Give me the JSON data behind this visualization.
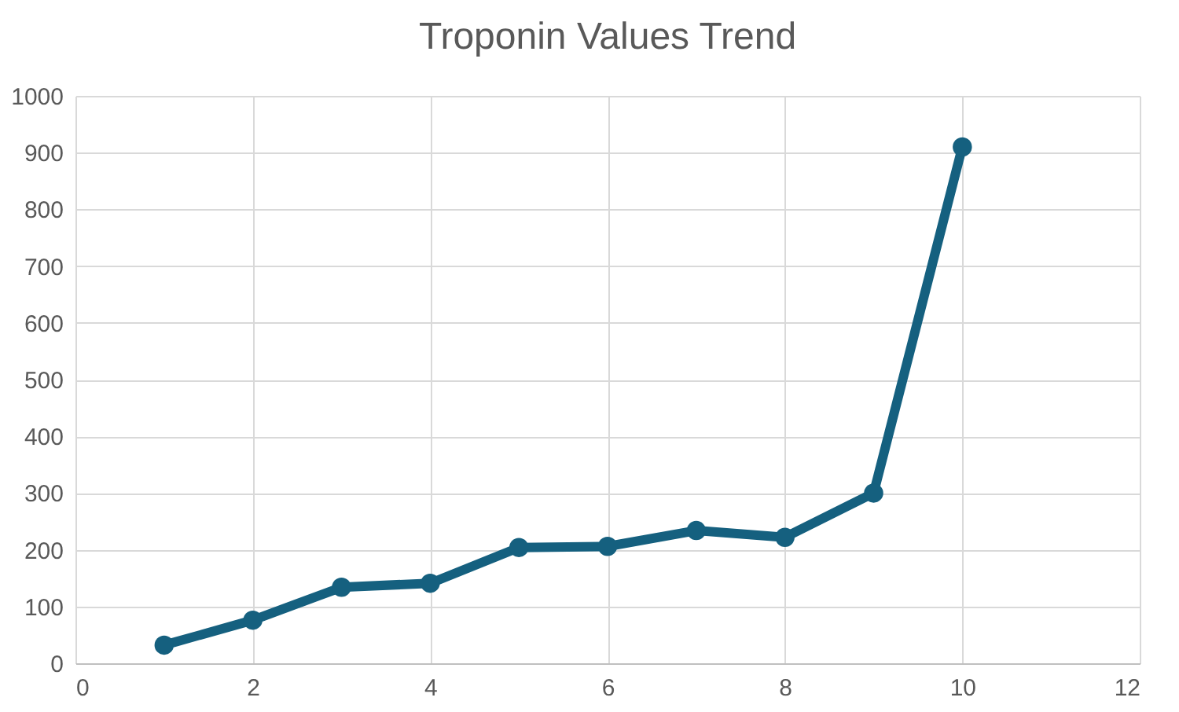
{
  "chart_data": {
    "type": "line",
    "title": "Troponin Values Trend",
    "x": [
      1,
      2,
      3,
      4,
      5,
      6,
      7,
      8,
      9,
      10
    ],
    "series": [
      {
        "color": "#15607f",
        "values": [
          32,
          76,
          134,
          141,
          204,
          206,
          234,
          222,
          300,
          910
        ]
      }
    ],
    "xlim": [
      0,
      12
    ],
    "xticks": [
      0,
      2,
      4,
      6,
      8,
      10,
      12
    ],
    "ylim": [
      0,
      1000
    ],
    "yticks": [
      0,
      100,
      200,
      300,
      400,
      500,
      600,
      700,
      800,
      900,
      1000
    ],
    "grid": true,
    "marker": "circle",
    "line_style": "solid"
  }
}
